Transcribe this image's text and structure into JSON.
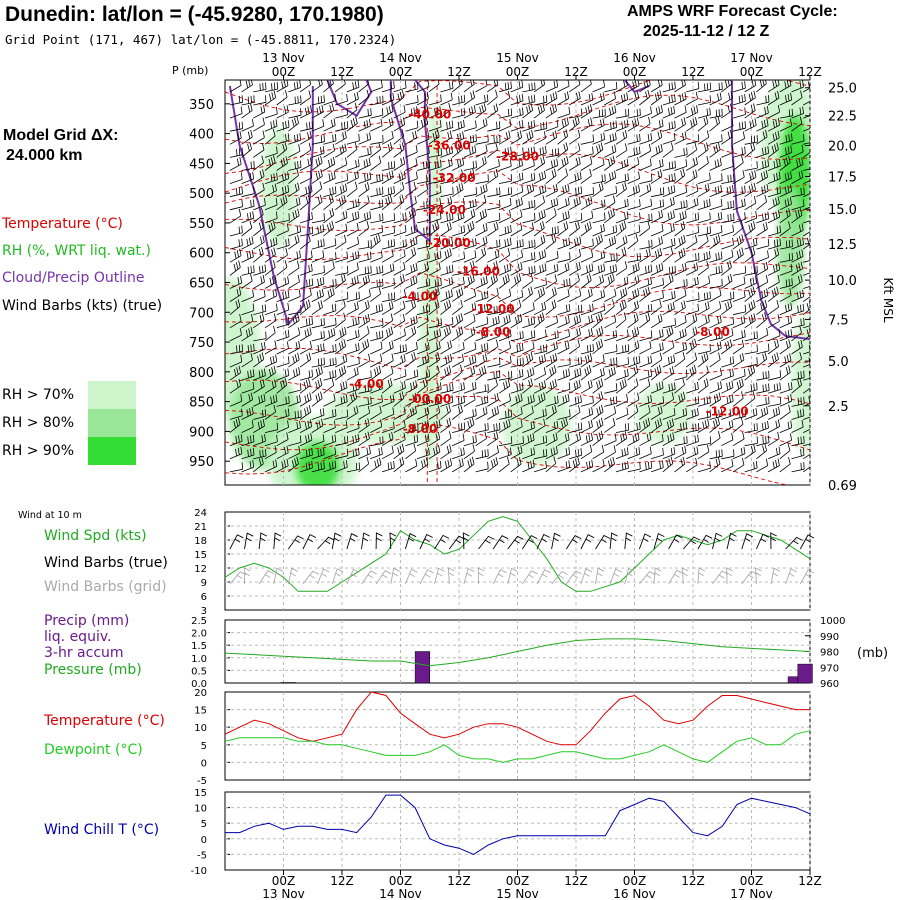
{
  "header": {
    "title": "Dunedin:  lat/lon = (-45.9280, 170.1980)",
    "subtitle": "Grid Point (171, 467) lat/lon = (-45.8811, 170.2324)",
    "cycle_line1": "AMPS WRF Forecast Cycle:",
    "cycle_line2": "2025-11-12 / 12  Z"
  },
  "left_panel": {
    "model_grid_label": "Model Grid ΔX:",
    "model_grid_value": "24.000 km",
    "temperature_label": "Temperature (°C)",
    "rh_label": "RH (%, WRT liq. wat.)",
    "cloud_label": "Cloud/Precip Outline",
    "wind_label": "Wind Barbs (kts) (true)",
    "rh_keys": [
      {
        "label": "RH > 70%",
        "color": "#ccf5cc"
      },
      {
        "label": "RH > 80%",
        "color": "#99e699"
      },
      {
        "label": "RH > 90%",
        "color": "#33dd33"
      }
    ]
  },
  "colors": {
    "temperature": "#dd0000",
    "rh": "#22bb22",
    "cloud": "#7733aa",
    "wind": "#000000",
    "wind_grid": "#aaaaaa",
    "precip": "#6a1a8a",
    "pressure": "#22aa22",
    "dewpoint": "#22cc22",
    "windchill": "#0000aa",
    "grid": "#bbbbbb"
  },
  "time_axis": {
    "tick_labels": [
      "00Z",
      "12Z",
      "00Z",
      "12Z",
      "00Z",
      "12Z",
      "00Z",
      "12Z",
      "00Z",
      "12Z"
    ],
    "tick_hours": [
      12,
      24,
      36,
      48,
      60,
      72,
      84,
      96,
      108,
      120
    ],
    "date_labels": [
      "13 Nov",
      "14 Nov",
      "15 Nov",
      "16 Nov",
      "17 Nov"
    ],
    "date_hours": [
      12,
      36,
      60,
      84,
      108
    ],
    "hour_range": [
      0,
      120
    ]
  },
  "chart_data": [
    {
      "type": "heatmap",
      "panel": "upper-air cross-section",
      "ylabel": "P (mb)",
      "ylabel_right": "Kft MSL",
      "y_ticks": [
        350,
        400,
        450,
        500,
        550,
        600,
        650,
        700,
        750,
        800,
        850,
        900,
        950
      ],
      "ylim": [
        990,
        310
      ],
      "right_ticks": [
        {
          "label": "25.0",
          "p": 323
        },
        {
          "label": "22.5",
          "p": 370
        },
        {
          "label": "20.0",
          "p": 420
        },
        {
          "label": "17.5",
          "p": 472
        },
        {
          "label": "15.0",
          "p": 527
        },
        {
          "label": "12.5",
          "p": 585
        },
        {
          "label": "10.0",
          "p": 646
        },
        {
          "label": "7.5",
          "p": 712
        },
        {
          "label": "5.0",
          "p": 782
        },
        {
          "label": "2.5",
          "p": 857
        },
        {
          "label": "0.69",
          "p": 990
        }
      ],
      "temperature_labels": [
        {
          "text": "-40.00",
          "hour": 42,
          "p": 375
        },
        {
          "text": "-36.00",
          "hour": 46,
          "p": 427
        },
        {
          "text": "-28.00",
          "hour": 60,
          "p": 445
        },
        {
          "text": "-32.00",
          "hour": 47,
          "p": 481
        },
        {
          "text": "-24.00",
          "hour": 45,
          "p": 535
        },
        {
          "text": "-20.00",
          "hour": 46,
          "p": 590
        },
        {
          "text": "-16.00",
          "hour": 52,
          "p": 638
        },
        {
          "text": "-4.00",
          "hour": 40,
          "p": 680
        },
        {
          "text": "-12.00",
          "hour": 55,
          "p": 701
        },
        {
          "text": "-8.00",
          "hour": 55,
          "p": 740
        },
        {
          "text": "-8.00",
          "hour": 100,
          "p": 740
        },
        {
          "text": "-4.00",
          "hour": 29,
          "p": 827
        },
        {
          "text": "-00.00",
          "hour": 42,
          "p": 852
        },
        {
          "text": "-12.00",
          "hour": 103,
          "p": 873
        },
        {
          "text": "-8.00",
          "hour": 40,
          "p": 903
        }
      ]
    },
    {
      "type": "line",
      "panel": "wind at 10 m",
      "panel_label": "Wind at 10 m",
      "labels": [
        "Wind Spd (kts)",
        "Wind Barbs (true)",
        "Wind Barbs (grid)"
      ],
      "ylim": [
        3,
        24
      ],
      "y_ticks": [
        3,
        6,
        9,
        12,
        15,
        18,
        21,
        24
      ],
      "x": [
        0,
        3,
        6,
        9,
        12,
        15,
        18,
        21,
        24,
        27,
        30,
        33,
        36,
        39,
        42,
        45,
        48,
        51,
        54,
        57,
        60,
        63,
        66,
        69,
        72,
        75,
        78,
        81,
        84,
        87,
        90,
        93,
        96,
        99,
        102,
        105,
        108,
        111,
        114,
        117,
        120
      ],
      "series": [
        {
          "name": "Wind Spd (kts)",
          "values": [
            10,
            12,
            13,
            12,
            10,
            7,
            7,
            7,
            9,
            11,
            13,
            15,
            20,
            18,
            17,
            15,
            16,
            19,
            22,
            23,
            22,
            18,
            14,
            9,
            7,
            7,
            8,
            9,
            12,
            15,
            18,
            19,
            18,
            17,
            18,
            20,
            20,
            19,
            18,
            16,
            14
          ]
        }
      ]
    },
    {
      "type": "bar",
      "panel": "precip and pressure",
      "labels": [
        "Precip (mm)",
        "liq. equiv.",
        "3-hr accum",
        "Pressure (mb)"
      ],
      "precip_ylim": [
        0,
        2.5
      ],
      "precip_ticks": [
        0.0,
        0.5,
        1.0,
        1.5,
        2.0,
        2.5
      ],
      "pressure_ylim": [
        960,
        1000
      ],
      "pressure_ticks": [
        960,
        970,
        980,
        990,
        1000
      ],
      "pressure_unit": "(mb)",
      "precip_bars": [
        {
          "hour": 13,
          "value": 0.02
        },
        {
          "hour": 40.5,
          "value": 1.25
        },
        {
          "hour": 117,
          "value": 0.25
        },
        {
          "hour": 119,
          "value": 0.75
        }
      ],
      "pressure": {
        "x": [
          0,
          6,
          12,
          18,
          24,
          30,
          36,
          42,
          48,
          54,
          60,
          66,
          72,
          78,
          84,
          90,
          96,
          102,
          108,
          114,
          120
        ],
        "values": [
          979,
          978,
          977,
          976,
          975,
          974,
          974,
          971,
          973,
          976,
          980,
          984,
          987,
          988,
          988,
          987,
          985,
          983,
          982,
          981,
          980
        ]
      }
    },
    {
      "type": "line",
      "panel": "temperature and dewpoint",
      "ylim": [
        -5,
        20
      ],
      "y_ticks": [
        -5,
        0,
        5,
        10,
        15,
        20
      ],
      "x": [
        0,
        3,
        6,
        9,
        12,
        15,
        18,
        21,
        24,
        27,
        30,
        33,
        36,
        39,
        42,
        45,
        48,
        51,
        54,
        57,
        60,
        63,
        66,
        69,
        72,
        75,
        78,
        81,
        84,
        87,
        90,
        93,
        96,
        99,
        102,
        105,
        108,
        111,
        114,
        117,
        120
      ],
      "series": [
        {
          "name": "Temperature (°C)",
          "values": [
            8,
            10,
            12,
            11,
            9,
            7,
            6,
            7,
            8,
            15,
            20,
            19,
            14,
            11,
            8,
            7,
            8,
            10,
            11,
            11,
            10,
            8,
            6,
            5,
            5,
            9,
            14,
            18,
            19,
            16,
            12,
            11,
            12,
            16,
            19,
            19,
            18,
            17,
            16,
            15,
            15
          ]
        },
        {
          "name": "Dewpoint (°C)",
          "values": [
            6,
            7,
            7,
            7,
            7,
            6,
            6,
            5,
            5,
            4,
            3,
            2,
            2,
            2,
            3,
            5,
            2,
            1,
            1,
            0,
            1,
            1,
            2,
            3,
            3,
            2,
            1,
            1,
            2,
            3,
            5,
            3,
            1,
            0,
            3,
            6,
            7,
            5,
            5,
            8,
            9
          ]
        }
      ]
    },
    {
      "type": "line",
      "panel": "wind chill",
      "ylim": [
        -10,
        15
      ],
      "y_ticks": [
        -10,
        -5,
        0,
        5,
        10,
        15
      ],
      "x": [
        0,
        3,
        6,
        9,
        12,
        15,
        18,
        21,
        24,
        27,
        30,
        33,
        36,
        39,
        42,
        45,
        48,
        51,
        54,
        57,
        60,
        63,
        66,
        69,
        72,
        75,
        78,
        81,
        84,
        87,
        90,
        93,
        96,
        99,
        102,
        105,
        108,
        111,
        114,
        117,
        120
      ],
      "series": [
        {
          "name": "Wind Chill T (°C)",
          "values": [
            2,
            2,
            4,
            5,
            3,
            4,
            4,
            3,
            3,
            2,
            7,
            14,
            14,
            10,
            0,
            -2,
            -3,
            -5,
            -2,
            0,
            1,
            1,
            1,
            1,
            1,
            1,
            1,
            9,
            11,
            13,
            12,
            7,
            2,
            1,
            4,
            11,
            13,
            12,
            11,
            10,
            8
          ]
        }
      ]
    }
  ]
}
